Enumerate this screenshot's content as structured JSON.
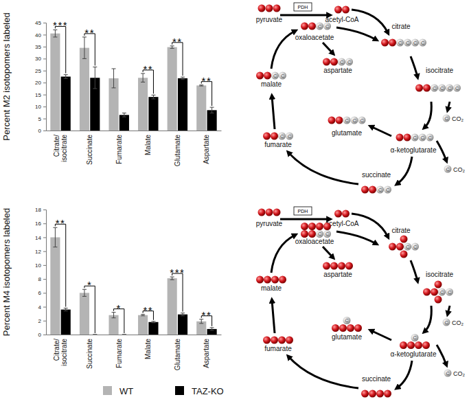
{
  "chart_data": [
    {
      "type": "bar",
      "y_label": "Percent M2 isotopomers labeled",
      "categories": [
        "Citrate/ isocitrate",
        "Succinate",
        "Fumarate",
        "Malate",
        "Glutamate",
        "Aspartate"
      ],
      "series": [
        {
          "color": "#b4b4b4",
          "values": [
            40.5,
            34.5,
            21.8,
            22,
            34.8,
            18.8
          ],
          "errors": [
            1.5,
            4.5,
            4,
            1.8,
            0.5,
            0.2
          ]
        },
        {
          "color": "#000000",
          "values": [
            22.5,
            22,
            6.5,
            14,
            21.8,
            8.5
          ],
          "errors": [
            0.8,
            4.5,
            0.8,
            0.8,
            0.5,
            1.2
          ]
        }
      ],
      "ylim": [
        0,
        45
      ],
      "yticks": [
        0,
        5,
        10,
        15,
        20,
        25,
        30,
        35,
        40,
        45
      ],
      "grid": false,
      "significance": [
        "***",
        "**",
        null,
        "**",
        "**",
        "**"
      ]
    },
    {
      "type": "bar",
      "y_label": "Percent M4 isotopomers labeled",
      "categories": [
        "Citrate/ isocitrate",
        "Succinate",
        "Fumarate",
        "Malate",
        "Glutamate",
        "Aspartate"
      ],
      "series": [
        {
          "name": "WT",
          "color": "#b4b4b4",
          "values": [
            14,
            6,
            2.8,
            2.8,
            8.1,
            1.9
          ],
          "errors": [
            1.4,
            0.5,
            0.4,
            0.1,
            0.2,
            0.3
          ]
        },
        {
          "name": "TAZ-KO",
          "color": "#000000",
          "values": [
            3.6,
            0,
            0,
            1.8,
            2.9,
            0.8
          ],
          "errors": [
            0.2,
            0,
            0,
            0.1,
            0.2,
            0.2
          ]
        }
      ],
      "ylim": [
        0,
        18
      ],
      "yticks": [
        0,
        2,
        4,
        6,
        8,
        10,
        12,
        14,
        16,
        18
      ],
      "grid": false,
      "legend": "bottom",
      "significance": [
        "**",
        "*",
        "*",
        "**",
        "***",
        "**"
      ]
    }
  ],
  "diagrams": [
    {
      "enzyme": "PDH",
      "co2": "CO₂",
      "atom_label": "C",
      "nodes": [
        {
          "label": "pyruvate",
          "carbons": [
            {
              "labeled": 3,
              "unlabeled": 0
            }
          ]
        },
        {
          "label": "acetyl-CoA",
          "carbons": [
            {
              "labeled": 2,
              "unlabeled": 0
            }
          ]
        },
        {
          "label": "citrate",
          "carbons": [
            {
              "labeled": 2,
              "unlabeled": 4
            }
          ]
        },
        {
          "label": "isocitrate",
          "carbons": [
            {
              "labeled": 2,
              "unlabeled": 4
            }
          ]
        },
        {
          "label": "α-ketoglutarate",
          "carbons": [
            {
              "labeled": 2,
              "unlabeled": 3
            }
          ]
        },
        {
          "label": "glutamate",
          "carbons": [
            {
              "labeled": 2,
              "unlabeled": 3
            }
          ]
        },
        {
          "label": "succinate",
          "carbons": [
            {
              "labeled": 2,
              "unlabeled": 2
            }
          ]
        },
        {
          "label": "fumarate",
          "carbons": [
            {
              "labeled": 2,
              "unlabeled": 2
            }
          ]
        },
        {
          "label": "malate",
          "carbons": [
            {
              "labeled": 2,
              "unlabeled": 2
            }
          ]
        },
        {
          "label": "oxaloacetate",
          "carbons": [
            {
              "labeled": 2,
              "unlabeled": 2
            }
          ]
        },
        {
          "label": "aspartate",
          "carbons": [
            {
              "labeled": 2,
              "unlabeled": 2
            }
          ]
        }
      ]
    },
    {
      "enzyme": "PDH",
      "co2": "CO₂",
      "atom_label": "C",
      "nodes": [
        {
          "label": "pyruvate",
          "carbons": [
            {
              "labeled": 3,
              "unlabeled": 0
            }
          ]
        },
        {
          "label": "acetyl-CoA",
          "carbons": [
            {
              "labeled": 2,
              "unlabeled": 0
            }
          ]
        },
        {
          "label": "citrate",
          "carbons": [
            {
              "labeled": 1,
              "unlabeled": 0
            },
            {
              "labeled": 2,
              "unlabeled": 2
            },
            {
              "labeled": 1,
              "unlabeled": 0
            }
          ]
        },
        {
          "label": "isocitrate",
          "carbons": [
            {
              "labeled": 1,
              "unlabeled": 0
            },
            {
              "labeled": 2,
              "unlabeled": 2
            },
            {
              "labeled": 1,
              "unlabeled": 0
            }
          ]
        },
        {
          "label": "α-ketoglutarate",
          "carbons": [
            {
              "labeled": 0,
              "unlabeled": 1
            },
            {
              "labeled": 4,
              "unlabeled": 0
            }
          ]
        },
        {
          "label": "glutamate",
          "carbons": [
            {
              "labeled": 0,
              "unlabeled": 1
            },
            {
              "labeled": 4,
              "unlabeled": 0
            }
          ]
        },
        {
          "label": "succinate",
          "carbons": [
            {
              "labeled": 4,
              "unlabeled": 0
            }
          ]
        },
        {
          "label": "fumarate",
          "carbons": [
            {
              "labeled": 4,
              "unlabeled": 0
            }
          ]
        },
        {
          "label": "malate",
          "carbons": [
            {
              "labeled": 4,
              "unlabeled": 0
            }
          ]
        },
        {
          "label": "oxaloacetate",
          "carbons": [
            {
              "labeled": 4,
              "unlabeled": 0
            },
            {
              "labeled": 2,
              "unlabeled": 2
            }
          ]
        },
        {
          "label": "aspartate",
          "carbons": [
            {
              "labeled": 4,
              "unlabeled": 0
            }
          ]
        }
      ]
    }
  ]
}
